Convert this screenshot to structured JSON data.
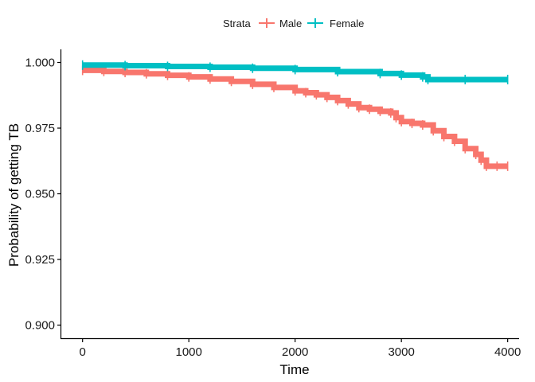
{
  "chart_data": {
    "type": "line",
    "title": "",
    "xlabel": "Time",
    "ylabel": "Probability of getting TB",
    "xlim": [
      -200,
      4100
    ],
    "ylim": [
      0.895,
      1.005
    ],
    "xticks": [
      0,
      1000,
      2000,
      3000,
      4000
    ],
    "yticks": [
      0.9,
      0.925,
      0.95,
      0.975,
      1.0
    ],
    "xtick_labels": [
      "0",
      "1000",
      "2000",
      "3000",
      "4000"
    ],
    "ytick_labels": [
      "0.900",
      "0.925",
      "0.950",
      "0.975",
      "1.000"
    ],
    "grid": false,
    "legend": {
      "title": "Strata",
      "position": "top",
      "entries": [
        "Male",
        "Female"
      ]
    },
    "series": [
      {
        "name": "Male",
        "color": "#F8766D",
        "x": [
          0,
          200,
          400,
          600,
          800,
          1000,
          1200,
          1400,
          1600,
          1800,
          2000,
          2100,
          2200,
          2300,
          2400,
          2500,
          2600,
          2700,
          2800,
          2900,
          2950,
          3000,
          3100,
          3200,
          3300,
          3400,
          3500,
          3600,
          3700,
          3750,
          3800,
          3900,
          4000
        ],
        "y": [
          0.997,
          0.9966,
          0.9962,
          0.9957,
          0.9951,
          0.9945,
          0.9937,
          0.9928,
          0.9917,
          0.9905,
          0.9892,
          0.9885,
          0.9877,
          0.9867,
          0.9855,
          0.9842,
          0.9828,
          0.9822,
          0.9814,
          0.9808,
          0.979,
          0.9775,
          0.9768,
          0.9762,
          0.974,
          0.9718,
          0.97,
          0.9672,
          0.965,
          0.9628,
          0.9605,
          0.9605,
          0.9605
        ]
      },
      {
        "name": "Female",
        "color": "#00BFC4",
        "x": [
          0,
          400,
          800,
          1200,
          1600,
          2000,
          2400,
          2800,
          3000,
          3200,
          3250,
          3600,
          4000
        ],
        "y": [
          0.999,
          0.9988,
          0.9985,
          0.9982,
          0.9978,
          0.9973,
          0.9965,
          0.9958,
          0.9952,
          0.9945,
          0.9935,
          0.9935,
          0.9935
        ]
      }
    ]
  }
}
